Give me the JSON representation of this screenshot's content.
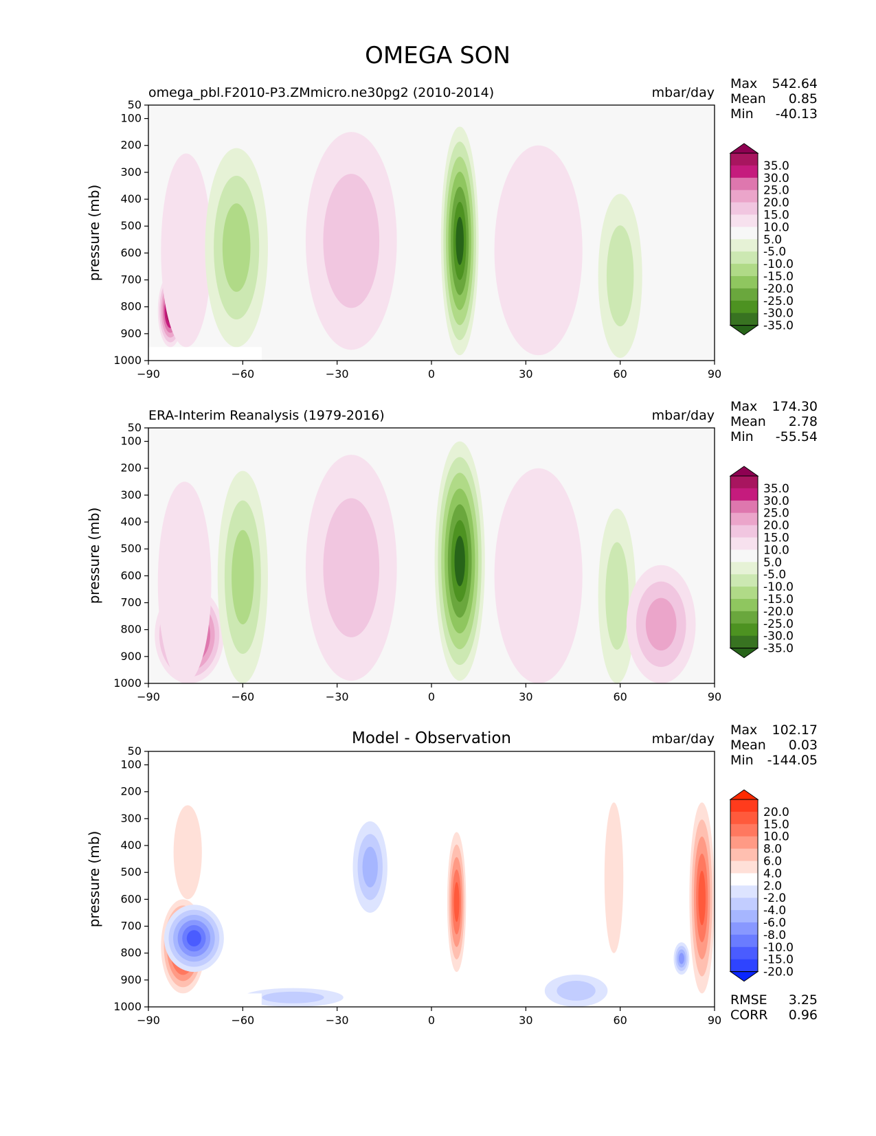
{
  "figure": {
    "title": "OMEGA SON"
  },
  "chart_data": [
    {
      "type": "heatmap",
      "panel": "test",
      "title_left": "omega_pbl.F2010-P3.ZMmicro.ne30pg2 (2010-2014)",
      "title_center": "",
      "units": "mbar/day",
      "xlabel": "",
      "ylabel": "pressure (mb)",
      "xlim": [
        -90,
        90
      ],
      "xticks": [
        -90,
        -60,
        -30,
        0,
        30,
        60,
        90
      ],
      "ylim": [
        1000,
        50
      ],
      "yticks": [
        50,
        100,
        200,
        300,
        400,
        500,
        600,
        700,
        800,
        900,
        1000
      ],
      "stats": {
        "max_label": "Max",
        "max": "542.64",
        "mean_label": "Mean",
        "mean": "0.85",
        "min_label": "Min",
        "min": "-40.13"
      },
      "colorbar": {
        "labels": [
          "35.0",
          "30.0",
          "25.0",
          "20.0",
          "15.0",
          "10.0",
          "5.0",
          "-5.0",
          "-10.0",
          "-15.0",
          "-20.0",
          "-25.0",
          "-30.0",
          "-35.0"
        ],
        "colors": [
          "#8e0152",
          "#a8155f",
          "#c51b7d",
          "#de77ae",
          "#eba5ca",
          "#f1c6e0",
          "#f7e1ee",
          "#f7f7f7",
          "#e6f2d6",
          "#cce8b2",
          "#b0da87",
          "#8fc65f",
          "#6aa73d",
          "#4d9221",
          "#387321",
          "#276419"
        ]
      },
      "features": [
        {
          "name": "antarctic-descent",
          "lat": [
            -87,
            -79
          ],
          "p": [
            680,
            950
          ],
          "value": 40
        },
        {
          "name": "sh-storm-descent",
          "lat": [
            -86,
            -70
          ],
          "p": [
            230,
            950
          ],
          "value": 8
        },
        {
          "name": "sh-midlat-ascent",
          "lat": [
            -72,
            -52
          ],
          "p": [
            210,
            950
          ],
          "value": -18
        },
        {
          "name": "sh-subtropical-descent",
          "lat": [
            -40,
            -11
          ],
          "p": [
            150,
            960
          ],
          "value": 10
        },
        {
          "name": "itcz-ascent",
          "lat": [
            3,
            15
          ],
          "p": [
            130,
            980
          ],
          "value": -40
        },
        {
          "name": "nh-subtropical-descent",
          "lat": [
            20,
            48
          ],
          "p": [
            200,
            980
          ],
          "value": 7
        },
        {
          "name": "nh-midlat-ascent",
          "lat": [
            53,
            67
          ],
          "p": [
            380,
            990
          ],
          "value": -10
        }
      ]
    },
    {
      "type": "heatmap",
      "panel": "reference",
      "title_left": "ERA-Interim Reanalysis (1979-2016)",
      "title_center": "",
      "units": "mbar/day",
      "xlabel": "",
      "ylabel": "pressure (mb)",
      "xlim": [
        -90,
        90
      ],
      "xticks": [
        -90,
        -60,
        -30,
        0,
        30,
        60,
        90
      ],
      "ylim": [
        1000,
        50
      ],
      "yticks": [
        50,
        100,
        200,
        300,
        400,
        500,
        600,
        700,
        800,
        900,
        1000
      ],
      "stats": {
        "max_label": "Max",
        "max": "174.30",
        "mean_label": "Mean",
        "mean": "2.78",
        "min_label": "Min",
        "min": "-55.54"
      },
      "colorbar": {
        "labels": [
          "35.0",
          "30.0",
          "25.0",
          "20.0",
          "15.0",
          "10.0",
          "5.0",
          "-5.0",
          "-10.0",
          "-15.0",
          "-20.0",
          "-25.0",
          "-30.0",
          "-35.0"
        ],
        "colors": [
          "#8e0152",
          "#a8155f",
          "#c51b7d",
          "#de77ae",
          "#eba5ca",
          "#f1c6e0",
          "#f7e1ee",
          "#f7f7f7",
          "#e6f2d6",
          "#cce8b2",
          "#b0da87",
          "#8fc65f",
          "#6aa73d",
          "#4d9221",
          "#387321",
          "#276419"
        ]
      },
      "features": [
        {
          "name": "antarctic-descent",
          "lat": [
            -88,
            -66
          ],
          "p": [
            640,
            1000
          ],
          "value": 40
        },
        {
          "name": "sh-storm-descent",
          "lat": [
            -87,
            -70
          ],
          "p": [
            250,
            1000
          ],
          "value": 8
        },
        {
          "name": "sh-midlat-ascent",
          "lat": [
            -68,
            -52
          ],
          "p": [
            210,
            1000
          ],
          "value": -18
        },
        {
          "name": "sh-subtropical-descent",
          "lat": [
            -40,
            -11
          ],
          "p": [
            150,
            990
          ],
          "value": 12
        },
        {
          "name": "itcz-ascent",
          "lat": [
            1,
            17
          ],
          "p": [
            100,
            990
          ],
          "value": -45
        },
        {
          "name": "nh-subtropical-descent",
          "lat": [
            20,
            48
          ],
          "p": [
            200,
            1000
          ],
          "value": 8
        },
        {
          "name": "nh-midlat-ascent",
          "lat": [
            53,
            65
          ],
          "p": [
            350,
            1000
          ],
          "value": -12
        },
        {
          "name": "arctic-descent",
          "lat": [
            62,
            84
          ],
          "p": [
            560,
            1000
          ],
          "value": 15
        }
      ]
    },
    {
      "type": "heatmap",
      "panel": "difference",
      "title_left": "",
      "title_center": "Model - Observation",
      "units": "mbar/day",
      "xlabel": "",
      "ylabel": "pressure (mb)",
      "xlim": [
        -90,
        90
      ],
      "xticks": [
        -90,
        -60,
        -30,
        0,
        30,
        60,
        90
      ],
      "ylim": [
        1000,
        50
      ],
      "yticks": [
        50,
        100,
        200,
        300,
        400,
        500,
        600,
        700,
        800,
        900,
        1000
      ],
      "stats": {
        "max_label": "Max",
        "max": "102.17",
        "mean_label": "Mean",
        "mean": "0.03",
        "min_label": "Min",
        "min": "-144.05"
      },
      "colorbar": {
        "labels": [
          "20.0",
          "15.0",
          "10.0",
          "8.0",
          "6.0",
          "4.0",
          "2.0",
          "-2.0",
          "-4.0",
          "-6.0",
          "-8.0",
          "-10.0",
          "-15.0",
          "-20.0"
        ],
        "colors": [
          "#ff2a00",
          "#ff3b1c",
          "#ff5a3c",
          "#ff785f",
          "#ff9a85",
          "#ffbfb0",
          "#ffe0d8",
          "#ffffff",
          "#dde4ff",
          "#c2cdff",
          "#a6b6ff",
          "#8898ff",
          "#6a7cff",
          "#4a5cff",
          "#2e44ff",
          "#0a26ff"
        ]
      },
      "extra_stats": {
        "rmse_label": "RMSE",
        "rmse": "3.25",
        "corr_label": "CORR",
        "corr": "0.96"
      },
      "features": [
        {
          "name": "antarctic-positive",
          "lat": [
            -86,
            -72
          ],
          "p": [
            600,
            950
          ],
          "value": 22
        },
        {
          "name": "antarctic-negative",
          "lat": [
            -85,
            -66
          ],
          "p": [
            620,
            870
          ],
          "value": -18
        },
        {
          "name": "sh-weak-positive",
          "lat": [
            -82,
            -73
          ],
          "p": [
            250,
            600
          ],
          "value": 3
        },
        {
          "name": "sh-pbl-negative",
          "lat": [
            -60,
            -28
          ],
          "p": [
            930,
            1000
          ],
          "value": -4
        },
        {
          "name": "sh-subtropical-negative",
          "lat": [
            -25,
            -14
          ],
          "p": [
            310,
            650
          ],
          "value": -6
        },
        {
          "name": "itcz-positive",
          "lat": [
            5,
            11
          ],
          "p": [
            350,
            870
          ],
          "value": 14
        },
        {
          "name": "nh-pbl-negative",
          "lat": [
            36,
            56
          ],
          "p": [
            880,
            1000
          ],
          "value": -5
        },
        {
          "name": "nh-weak-positive",
          "lat": [
            55,
            61
          ],
          "p": [
            240,
            800
          ],
          "value": 3
        },
        {
          "name": "arctic-negative",
          "lat": [
            77,
            82
          ],
          "p": [
            760,
            880
          ],
          "value": -8
        },
        {
          "name": "arctic-positive",
          "lat": [
            82,
            90
          ],
          "p": [
            240,
            950
          ],
          "value": 10
        }
      ]
    }
  ]
}
